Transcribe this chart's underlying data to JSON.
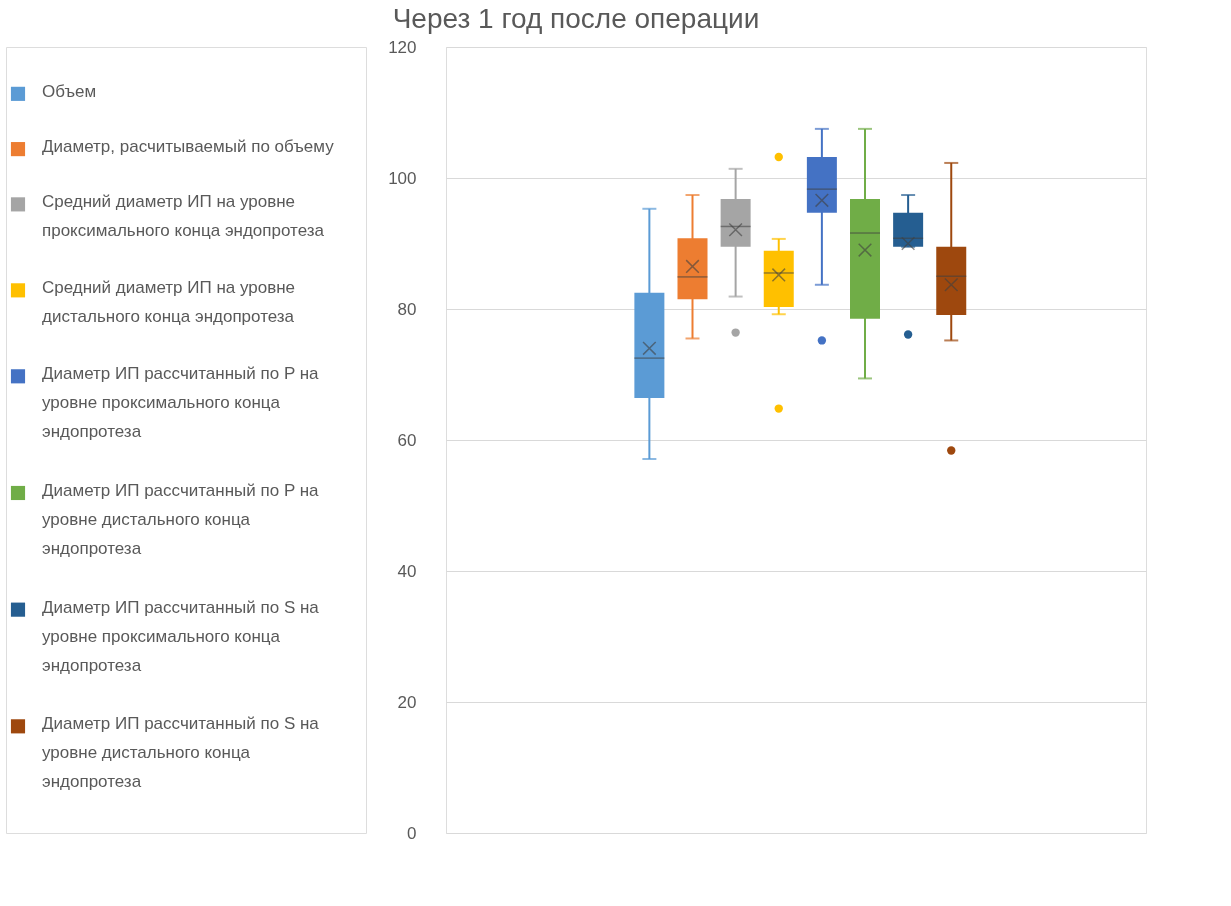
{
  "chart_data": {
    "type": "box",
    "title": "Через 1 год после операции",
    "categories": [
      null
    ],
    "series": [
      {
        "name": "Объем",
        "color": "#5b9bd5",
        "boxes": [
          {
            "low": 57.1,
            "q1": 66.4,
            "median": 72.5,
            "q3": 82.5,
            "high": 95.3,
            "mean": 74.0
          }
        ]
      },
      {
        "name": "Диаметр, расчитываемый по объему",
        "color": "#ed7d31",
        "boxes": [
          {
            "low": 75.5,
            "q1": 81.5,
            "median": 84.9,
            "q3": 90.8,
            "high": 97.4,
            "mean": 86.5
          }
        ]
      },
      {
        "name": "Средний диаметр ИП на уровне проксимального конца эндопротеза",
        "color": "#a5a5a5",
        "boxes": [
          {
            "low": 81.9,
            "q1": 89.5,
            "median": 92.6,
            "q3": 96.8,
            "high": 101.4,
            "mean": 92.1,
            "outliers": [
              76.4
            ]
          }
        ]
      },
      {
        "name": "Средний диаметр ИП на уровне дистального конца эндопротеза",
        "color": "#ffc000",
        "boxes": [
          {
            "low": 79.2,
            "q1": 80.3,
            "median": 85.5,
            "q3": 88.9,
            "high": 90.7,
            "mean": 85.2,
            "outliers": [
              103.2,
              64.8
            ]
          }
        ]
      },
      {
        "name": "Диаметр ИП рассчитанный по P на уровне проксимального конца эндопротеза",
        "color": "#4472c4",
        "boxes": [
          {
            "low": 83.7,
            "q1": 94.7,
            "median": 98.3,
            "q3": 103.2,
            "high": 107.5,
            "mean": 96.6,
            "outliers": [
              75.2
            ]
          }
        ]
      },
      {
        "name": "Диаметр ИП рассчитанный по P на уровне дистального конца эндопротеза",
        "color": "#70ad47",
        "boxes": [
          {
            "low": 69.4,
            "q1": 78.5,
            "median": 91.6,
            "q3": 96.8,
            "high": 107.5,
            "mean": 89.0
          }
        ]
      },
      {
        "name": "Диаметр ИП рассчитанный по S на уровне проксимального конца эндопротеза",
        "color": "#255e91",
        "boxes": [
          {
            "low": 89.5,
            "q1": 89.5,
            "median": 90.8,
            "q3": 94.7,
            "high": 97.4,
            "mean": 90.0,
            "outliers": [
              76.1
            ]
          }
        ]
      },
      {
        "name": "Диаметр ИП рассчитанный по S на уровне дистального конца эндопротеза",
        "color": "#9e480e",
        "boxes": [
          {
            "low": 75.2,
            "q1": 79.1,
            "median": 85.0,
            "q3": 89.5,
            "high": 102.3,
            "mean": 83.7,
            "outliers": [
              58.4
            ]
          }
        ]
      }
    ],
    "ylim": [
      0,
      120
    ],
    "yticks": [
      0,
      20,
      40,
      60,
      80,
      100,
      120
    ],
    "grid": "y",
    "legend": "left",
    "tick_labels": "y"
  }
}
